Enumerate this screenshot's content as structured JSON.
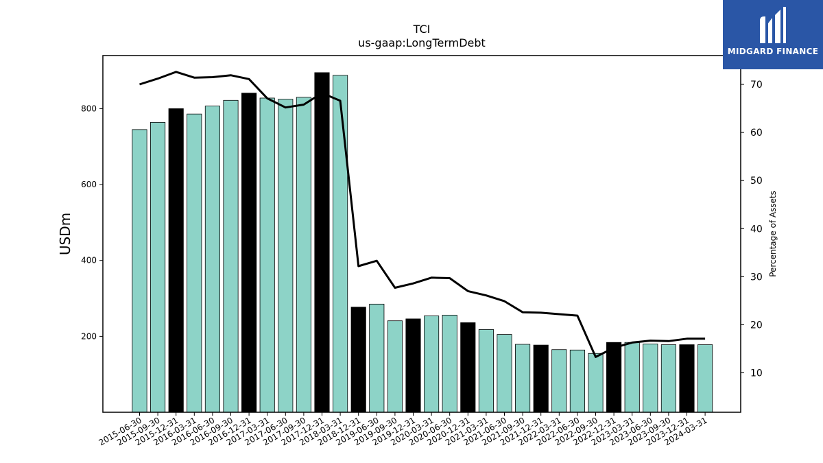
{
  "logo": {
    "text": "MIDGARD FINANCE"
  },
  "colors": {
    "bar_default": "#8dd3c7",
    "bar_highlight": "#000000",
    "line": "#000000",
    "logo_bg": "#2a56a6"
  },
  "chart_data": {
    "type": "bar",
    "title": "TCI",
    "subtitle": "us-gaap:LongTermDebt",
    "ylabel": "USDm",
    "y2label": "Percentage of Assets",
    "ylim": [
      0,
      940
    ],
    "y2lim": [
      1.8,
      76.0
    ],
    "yticks": [
      200,
      400,
      600,
      800
    ],
    "y2ticks": [
      10,
      20,
      30,
      40,
      50,
      60,
      70
    ],
    "categories": [
      "2015-06-30",
      "2015-09-30",
      "2015-12-31",
      "2016-03-31",
      "2016-06-30",
      "2016-09-30",
      "2016-12-31",
      "2017-03-31",
      "2017-06-30",
      "2017-09-30",
      "2017-12-31",
      "2018-03-31",
      "2018-12-31",
      "2019-06-30",
      "2019-09-30",
      "2019-12-31",
      "2020-03-31",
      "2020-06-30",
      "2020-12-31",
      "2021-03-31",
      "2021-06-30",
      "2021-09-30",
      "2021-12-31",
      "2022-03-31",
      "2022-06-30",
      "2022-09-30",
      "2022-12-31",
      "2023-03-31",
      "2023-06-30",
      "2023-09-30",
      "2023-12-31",
      "2024-03-31"
    ],
    "series": [
      {
        "type": "bar",
        "axis": "left",
        "values": [
          745,
          764,
          800,
          786,
          807,
          822,
          841,
          828,
          825,
          830,
          895,
          888,
          277,
          285,
          241,
          246,
          254,
          256,
          236,
          218,
          205,
          179,
          177,
          165,
          164,
          155,
          184,
          184,
          180,
          178,
          178,
          178
        ],
        "highlight": [
          false,
          false,
          true,
          false,
          false,
          false,
          true,
          false,
          false,
          false,
          true,
          false,
          true,
          false,
          false,
          true,
          false,
          false,
          true,
          false,
          false,
          false,
          true,
          false,
          false,
          false,
          true,
          false,
          false,
          false,
          true,
          false
        ]
      },
      {
        "type": "line",
        "axis": "right",
        "values": [
          70.0,
          71.2,
          72.6,
          71.4,
          71.5,
          71.9,
          71.1,
          67.1,
          65.2,
          65.8,
          68.2,
          66.6,
          32.2,
          33.3,
          27.7,
          28.6,
          29.8,
          29.7,
          27.0,
          26.1,
          24.9,
          22.6,
          22.5,
          22.2,
          21.9,
          13.3,
          15.2,
          16.3,
          16.7,
          16.6,
          17.1,
          17.1
        ]
      }
    ]
  }
}
